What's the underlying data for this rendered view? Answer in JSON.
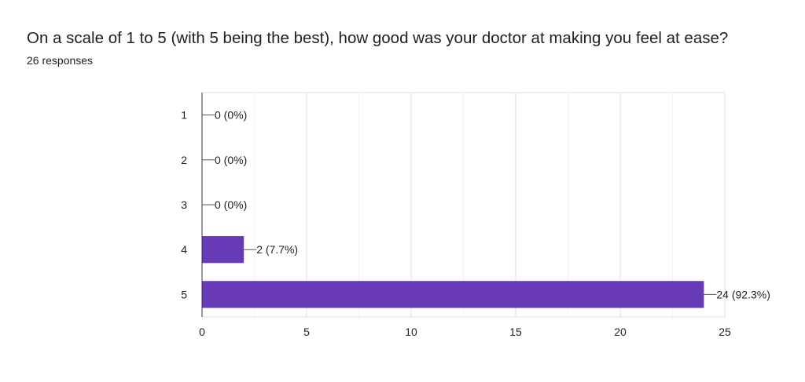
{
  "question": {
    "title": "On a scale of 1 to 5 (with 5 being the best), how good was your doctor at making you feel at ease?",
    "responses_text": "26 responses"
  },
  "chart_data": {
    "type": "bar",
    "orientation": "horizontal",
    "categories": [
      "1",
      "2",
      "3",
      "4",
      "5"
    ],
    "values": [
      0,
      0,
      0,
      2,
      24
    ],
    "data_labels": [
      "0 (0%)",
      "0 (0%)",
      "0 (0%)",
      "2 (7.7%)",
      "24 (92.3%)"
    ],
    "xlim": [
      0,
      25
    ],
    "x_ticks": [
      0,
      5,
      10,
      15,
      20,
      25
    ],
    "bar_color": "#673ab7",
    "grid": true
  }
}
